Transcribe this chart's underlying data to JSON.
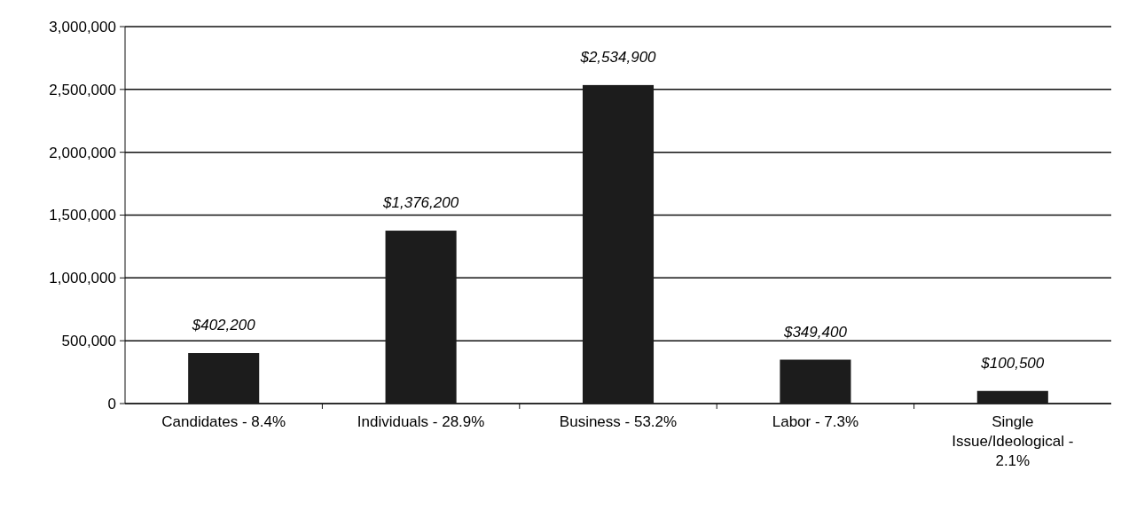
{
  "chart_data": {
    "type": "bar",
    "categories": [
      "Candidates - 8.4%",
      "Individuals - 28.9%",
      "Business - 53.2%",
      "Labor - 7.3%",
      "Single Issue/Ideological - 2.1%"
    ],
    "values": [
      402200,
      1376200,
      2534900,
      349400,
      100500
    ],
    "value_labels": [
      "$402,200",
      "$1,376,200",
      "$2,534,900",
      "$349,400",
      "$100,500"
    ],
    "color": "#1c1c1c",
    "ylim": [
      0,
      3000000
    ],
    "yticks": [
      {
        "value": 0,
        "label": "0"
      },
      {
        "value": 500000,
        "label": "500,000"
      },
      {
        "value": 1000000,
        "label": "1,000,000"
      },
      {
        "value": 1500000,
        "label": "1,500,000"
      },
      {
        "value": 2000000,
        "label": "2,000,000"
      },
      {
        "value": 2500000,
        "label": "2,500,000"
      },
      {
        "value": 3000000,
        "label": "3,000,000"
      }
    ],
    "grid": "y"
  }
}
